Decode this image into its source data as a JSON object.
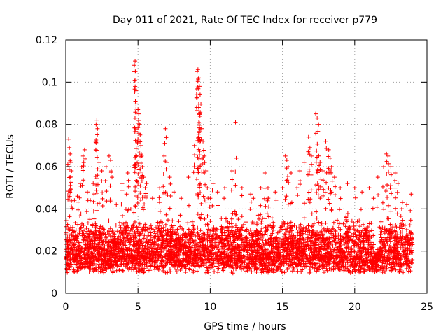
{
  "chart_data": {
    "type": "scatter",
    "title": "Day 011 of 2021, Rate Of TEC Index for receiver p779",
    "xlabel": "GPS time / hours",
    "ylabel": "ROTI / TECUs",
    "xlim": [
      0,
      25
    ],
    "ylim": [
      0,
      0.12
    ],
    "xticks": [
      0,
      5,
      10,
      15,
      20,
      25
    ],
    "yticks": [
      0,
      0.02,
      0.04,
      0.06,
      0.08,
      0.1,
      0.12
    ],
    "xtick_labels": [
      "0",
      "5",
      "10",
      "15",
      "20",
      "25"
    ],
    "ytick_labels": [
      "0",
      "0.02",
      "0.04",
      "0.06",
      "0.08",
      "0.1",
      "0.12"
    ],
    "grid": true,
    "marker": "+",
    "marker_color": "#ff0000",
    "dense_band": {
      "description": "bulk of observations",
      "x_range": [
        0,
        24
      ],
      "y_typical_range": [
        0.005,
        0.035
      ]
    },
    "series": [
      {
        "name": "ROTI",
        "points": [
          [
            0.2,
            0.073
          ],
          [
            0.25,
            0.069
          ],
          [
            0.3,
            0.066
          ],
          [
            0.35,
            0.062
          ],
          [
            0.4,
            0.058
          ],
          [
            0.3,
            0.055
          ],
          [
            0.6,
            0.044
          ],
          [
            0.8,
            0.046
          ],
          [
            1.0,
            0.052
          ],
          [
            1.1,
            0.06
          ],
          [
            1.2,
            0.065
          ],
          [
            1.3,
            0.068
          ],
          [
            1.5,
            0.048
          ],
          [
            1.7,
            0.044
          ],
          [
            1.9,
            0.052
          ],
          [
            2.1,
            0.08
          ],
          [
            2.15,
            0.082
          ],
          [
            2.2,
            0.078
          ],
          [
            2.3,
            0.062
          ],
          [
            2.5,
            0.058
          ],
          [
            2.8,
            0.06
          ],
          [
            3.0,
            0.065
          ],
          [
            3.1,
            0.063
          ],
          [
            3.2,
            0.055
          ],
          [
            3.5,
            0.042
          ],
          [
            3.9,
            0.052
          ],
          [
            4.2,
            0.047
          ],
          [
            4.3,
            0.057
          ],
          [
            4.5,
            0.04
          ],
          [
            4.75,
            0.108
          ],
          [
            4.8,
            0.11
          ],
          [
            4.82,
            0.105
          ],
          [
            4.85,
            0.101
          ],
          [
            4.9,
            0.065
          ],
          [
            5.0,
            0.087
          ],
          [
            5.05,
            0.085
          ],
          [
            5.1,
            0.08
          ],
          [
            5.15,
            0.075
          ],
          [
            5.2,
            0.07
          ],
          [
            5.25,
            0.065
          ],
          [
            5.3,
            0.06
          ],
          [
            5.4,
            0.055
          ],
          [
            5.5,
            0.05
          ],
          [
            5.6,
            0.052
          ],
          [
            6.0,
            0.045
          ],
          [
            6.5,
            0.05
          ],
          [
            6.8,
            0.065
          ],
          [
            6.9,
            0.078
          ],
          [
            7.0,
            0.062
          ],
          [
            7.2,
            0.055
          ],
          [
            7.5,
            0.048
          ],
          [
            8.0,
            0.045
          ],
          [
            8.5,
            0.055
          ],
          [
            8.9,
            0.07
          ],
          [
            9.1,
            0.105
          ],
          [
            9.15,
            0.106
          ],
          [
            9.2,
            0.102
          ],
          [
            9.25,
            0.098
          ],
          [
            9.3,
            0.094
          ],
          [
            9.2,
            0.088
          ],
          [
            9.25,
            0.085
          ],
          [
            9.4,
            0.078
          ],
          [
            9.5,
            0.072
          ],
          [
            9.6,
            0.065
          ],
          [
            9.7,
            0.058
          ],
          [
            9.8,
            0.05
          ],
          [
            10.0,
            0.045
          ],
          [
            10.2,
            0.052
          ],
          [
            10.5,
            0.048
          ],
          [
            11.0,
            0.05
          ],
          [
            11.5,
            0.058
          ],
          [
            11.75,
            0.081
          ],
          [
            11.8,
            0.064
          ],
          [
            12.2,
            0.05
          ],
          [
            12.8,
            0.047
          ],
          [
            13.0,
            0.045
          ],
          [
            13.5,
            0.05
          ],
          [
            13.8,
            0.057
          ],
          [
            14.0,
            0.05
          ],
          [
            14.5,
            0.048
          ],
          [
            15.0,
            0.05
          ],
          [
            15.2,
            0.065
          ],
          [
            15.3,
            0.063
          ],
          [
            15.4,
            0.06
          ],
          [
            15.6,
            0.057
          ],
          [
            16.0,
            0.05
          ],
          [
            16.2,
            0.058
          ],
          [
            16.5,
            0.062
          ],
          [
            16.8,
            0.074
          ],
          [
            16.9,
            0.069
          ],
          [
            17.0,
            0.065
          ],
          [
            17.3,
            0.085
          ],
          [
            17.4,
            0.083
          ],
          [
            17.5,
            0.08
          ],
          [
            17.6,
            0.062
          ],
          [
            17.8,
            0.058
          ],
          [
            18.0,
            0.072
          ],
          [
            18.2,
            0.068
          ],
          [
            18.3,
            0.064
          ],
          [
            18.4,
            0.06
          ],
          [
            18.6,
            0.055
          ],
          [
            19.0,
            0.05
          ],
          [
            19.5,
            0.052
          ],
          [
            20.0,
            0.05
          ],
          [
            20.5,
            0.048
          ],
          [
            21.0,
            0.05
          ],
          [
            21.3,
            0.045
          ],
          [
            21.6,
            0.055
          ],
          [
            22.0,
            0.06
          ],
          [
            22.2,
            0.066
          ],
          [
            22.3,
            0.065
          ],
          [
            22.5,
            0.06
          ],
          [
            22.8,
            0.057
          ],
          [
            23.0,
            0.052
          ],
          [
            23.3,
            0.043
          ],
          [
            23.6,
            0.042
          ],
          [
            23.9,
            0.047
          ]
        ]
      }
    ]
  }
}
